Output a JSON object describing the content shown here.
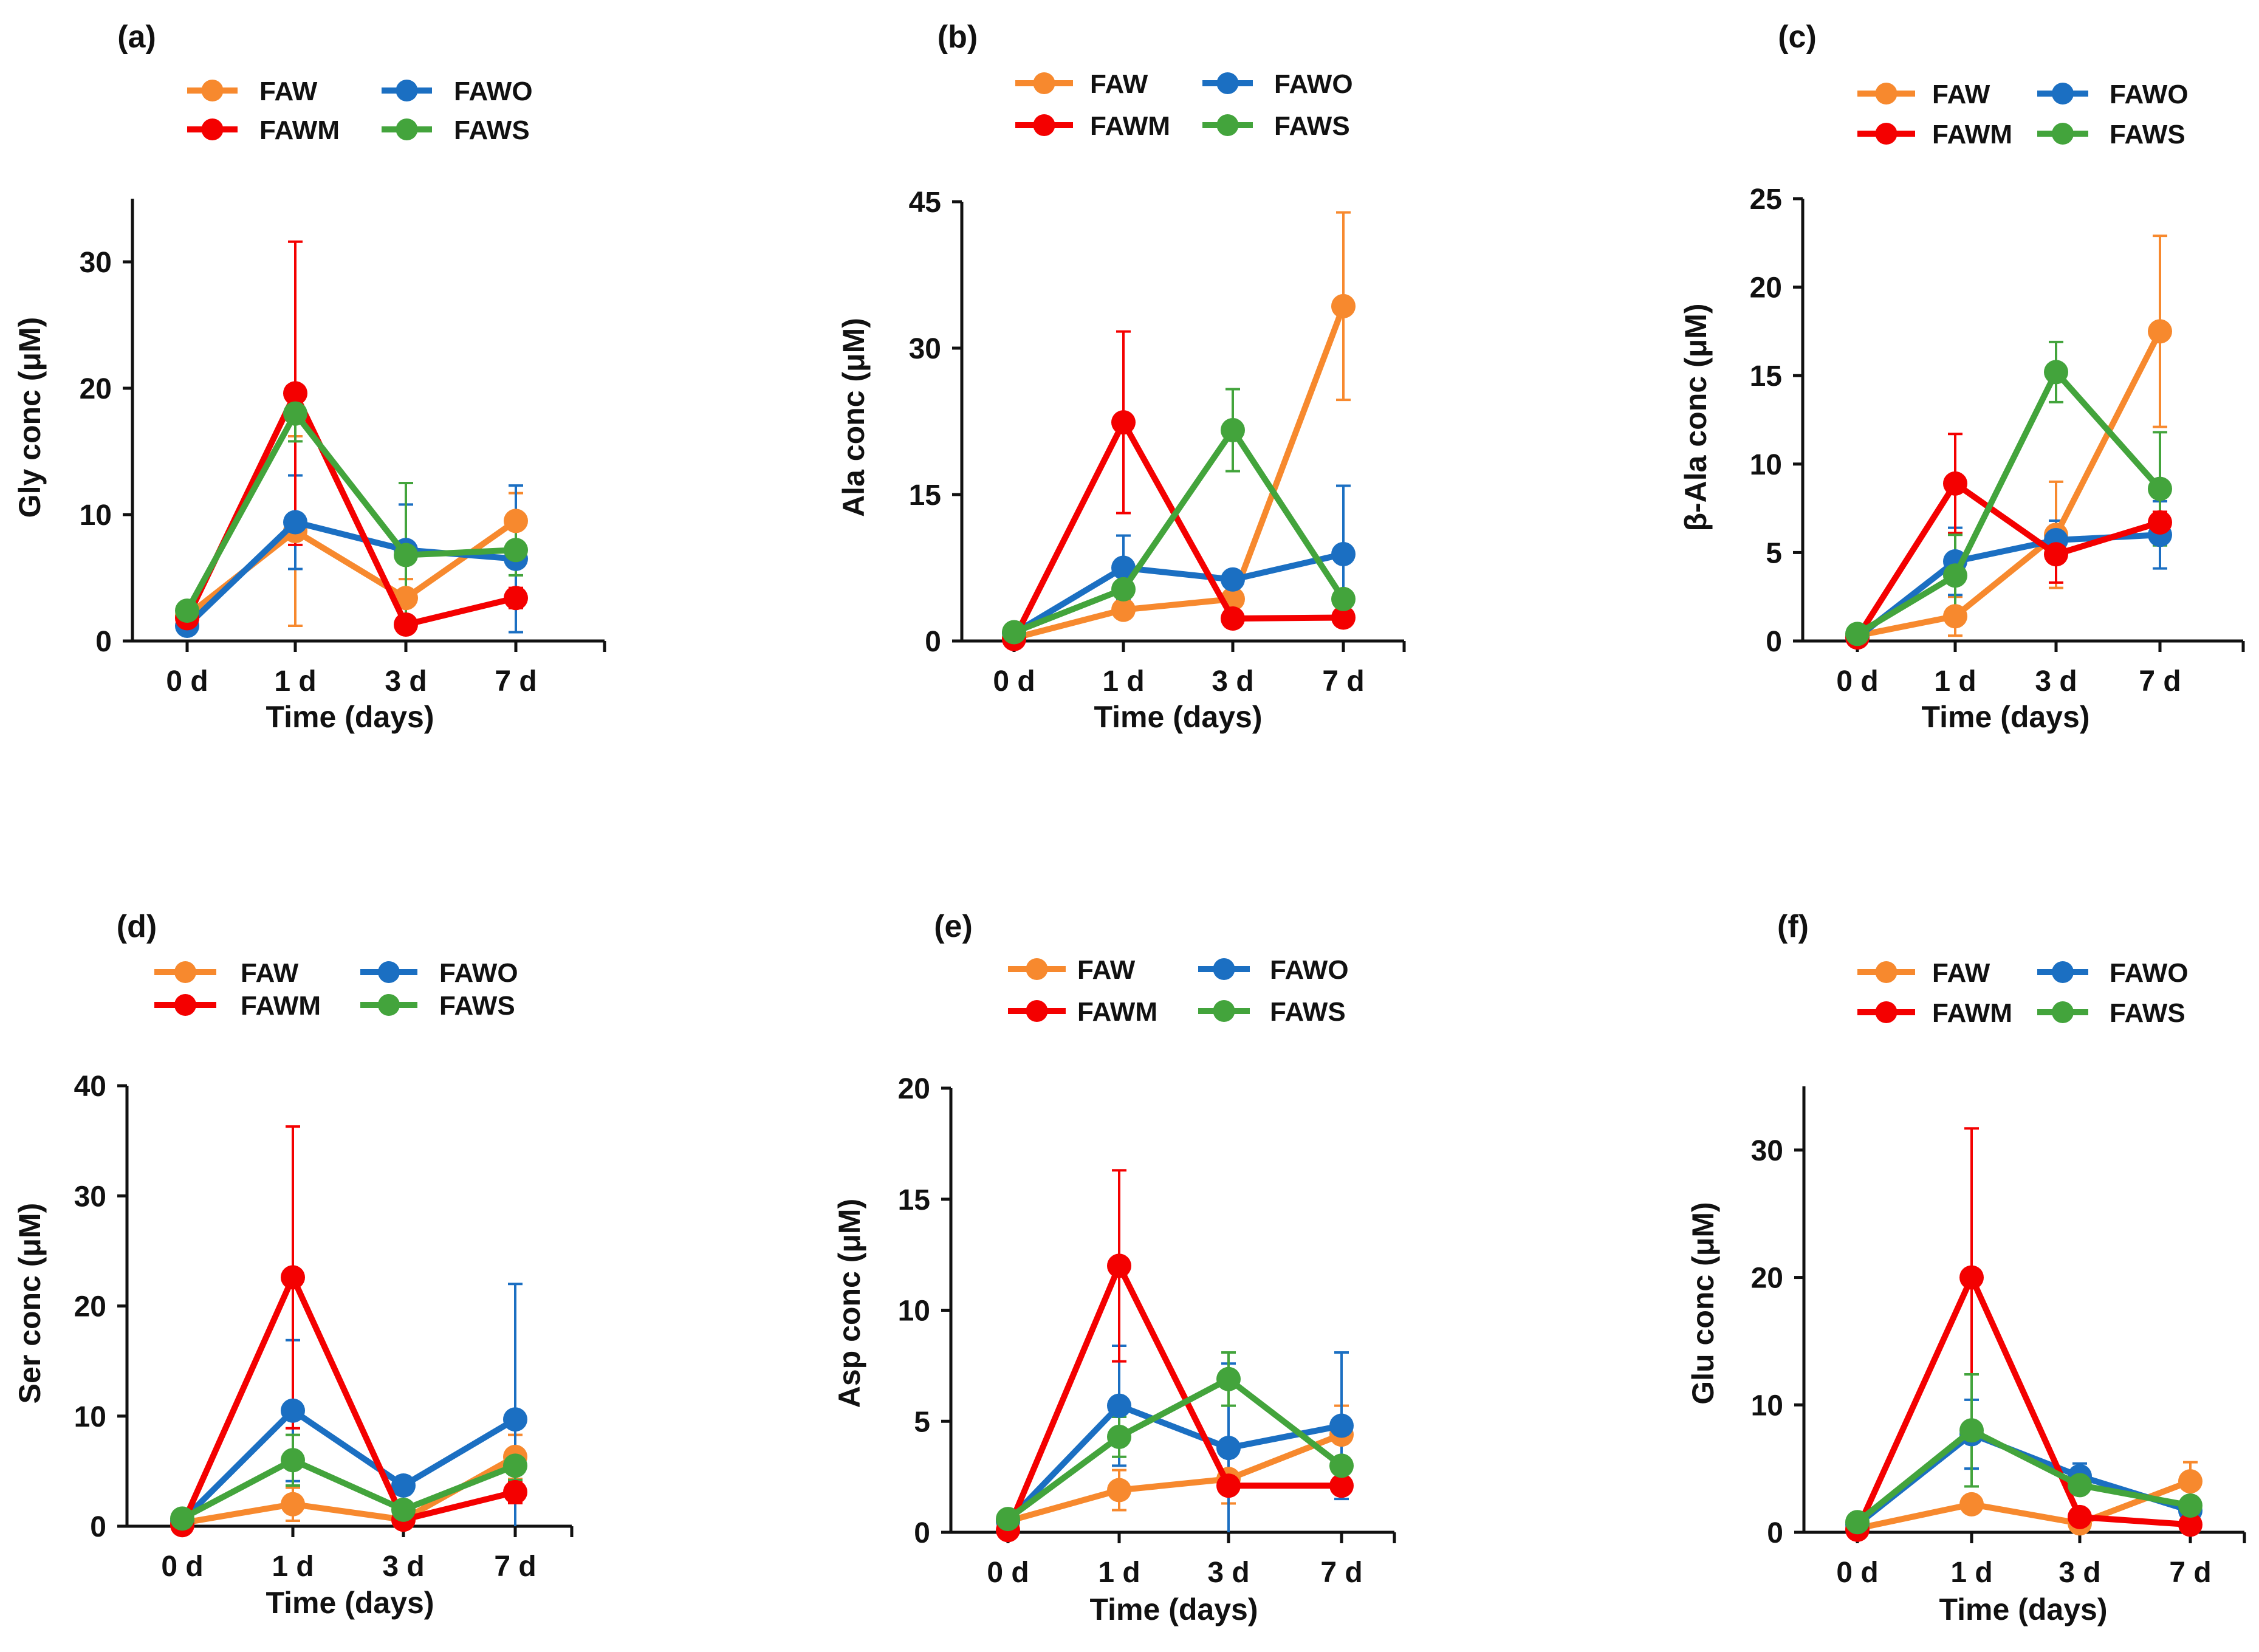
{
  "chart_data": [
    {
      "type": "line",
      "panel_label": "(a)",
      "ylabel": "Gly conc (μM)",
      "xlabel": "Time (days)",
      "categories": [
        "0 d",
        "1 d",
        "3 d",
        "7 d"
      ],
      "ylim": [
        0,
        35
      ],
      "yticks": [
        0,
        10,
        20,
        30
      ],
      "legend": "top",
      "series": [
        {
          "name": "FAW",
          "color": "#F7892E",
          "values": [
            2.0,
            8.7,
            3.4,
            9.5
          ],
          "error": [
            0.4,
            7.5,
            1.5,
            2.2
          ]
        },
        {
          "name": "FAWO",
          "color": "#1B6FC2",
          "values": [
            1.2,
            9.4,
            7.2,
            6.5
          ],
          "error": [
            0.5,
            3.7,
            3.6,
            5.8
          ]
        },
        {
          "name": "FAWM",
          "color": "#F40000",
          "values": [
            1.8,
            19.6,
            1.3,
            3.4
          ],
          "error": [
            0.3,
            12.0,
            0.3,
            0.8
          ]
        },
        {
          "name": "FAWS",
          "color": "#43A43C",
          "values": [
            2.4,
            18.0,
            6.8,
            7.2
          ],
          "error": [
            0.3,
            2.2,
            5.7,
            2.0
          ]
        }
      ]
    },
    {
      "type": "line",
      "panel_label": "(b)",
      "ylabel": "Ala conc (μM)",
      "xlabel": "Time (days)",
      "categories": [
        "0 d",
        "1 d",
        "3 d",
        "7 d"
      ],
      "ylim": [
        0,
        45
      ],
      "yticks": [
        0,
        15,
        30,
        45
      ],
      "legend": "top",
      "series": [
        {
          "name": "FAW",
          "color": "#F7892E",
          "values": [
            0.3,
            3.2,
            4.3,
            34.3
          ],
          "error": [
            0.2,
            0.5,
            0.5,
            9.6
          ]
        },
        {
          "name": "FAWO",
          "color": "#1B6FC2",
          "values": [
            0.8,
            7.5,
            6.3,
            8.9
          ],
          "error": [
            0.3,
            3.3,
            0.8,
            7.0
          ]
        },
        {
          "name": "FAWM",
          "color": "#F40000",
          "values": [
            0.2,
            22.4,
            2.3,
            2.4
          ],
          "error": [
            0.1,
            9.3,
            0.3,
            0.3
          ]
        },
        {
          "name": "FAWS",
          "color": "#43A43C",
          "values": [
            0.9,
            5.3,
            21.6,
            4.3
          ],
          "error": [
            0.2,
            0.8,
            4.2,
            0.8
          ]
        }
      ]
    },
    {
      "type": "line",
      "panel_label": "(c)",
      "ylabel": "β-Ala conc (μM)",
      "xlabel": "Time (days)",
      "categories": [
        "0 d",
        "1 d",
        "3 d",
        "7 d"
      ],
      "ylim": [
        0,
        25
      ],
      "yticks": [
        0,
        5,
        10,
        15,
        20,
        25
      ],
      "legend": "top",
      "series": [
        {
          "name": "FAW",
          "color": "#F7892E",
          "values": [
            0.3,
            1.4,
            6.0,
            17.5
          ],
          "error": [
            0.1,
            1.1,
            3.0,
            5.4
          ]
        },
        {
          "name": "FAWO",
          "color": "#1B6FC2",
          "values": [
            0.2,
            4.5,
            5.7,
            6.0
          ],
          "error": [
            0.1,
            1.9,
            1.1,
            1.9
          ]
        },
        {
          "name": "FAWM",
          "color": "#F40000",
          "values": [
            0.2,
            8.9,
            4.9,
            6.7
          ],
          "error": [
            0.1,
            2.8,
            1.6,
            0.6
          ]
        },
        {
          "name": "FAWS",
          "color": "#43A43C",
          "values": [
            0.4,
            3.7,
            15.2,
            8.6
          ],
          "error": [
            0.1,
            2.3,
            1.7,
            3.2
          ]
        }
      ]
    },
    {
      "type": "line",
      "panel_label": "(d)",
      "ylabel": "Ser conc (μM)",
      "xlabel": "Time (days)",
      "categories": [
        "0 d",
        "1 d",
        "3 d",
        "7 d"
      ],
      "ylim": [
        0,
        40
      ],
      "yticks": [
        0,
        10,
        20,
        30,
        40
      ],
      "legend": "top",
      "series": [
        {
          "name": "FAW",
          "color": "#F7892E",
          "values": [
            0.3,
            2.0,
            0.6,
            6.3
          ],
          "error": [
            0.2,
            1.5,
            0.3,
            2.0
          ]
        },
        {
          "name": "FAWO",
          "color": "#1B6FC2",
          "values": [
            0.5,
            10.5,
            3.7,
            9.7
          ],
          "error": [
            0.3,
            6.4,
            0.8,
            12.3
          ]
        },
        {
          "name": "FAWM",
          "color": "#F40000",
          "values": [
            0.1,
            22.6,
            0.6,
            3.1
          ],
          "error": [
            0.1,
            13.7,
            0.3,
            1.0
          ]
        },
        {
          "name": "FAWS",
          "color": "#43A43C",
          "values": [
            0.7,
            6.0,
            1.5,
            5.5
          ],
          "error": [
            0.3,
            2.3,
            0.5,
            1.3
          ]
        }
      ]
    },
    {
      "type": "line",
      "panel_label": "(e)",
      "ylabel": "Asp conc (μM)",
      "xlabel": "Time (days)",
      "categories": [
        "0 d",
        "1 d",
        "3 d",
        "7 d"
      ],
      "ylim": [
        0,
        20
      ],
      "yticks": [
        0,
        5,
        10,
        15,
        20
      ],
      "legend": "top",
      "series": [
        {
          "name": "FAW",
          "color": "#F7892E",
          "values": [
            0.5,
            1.9,
            2.4,
            4.4
          ],
          "error": [
            0.1,
            0.9,
            1.1,
            1.3
          ]
        },
        {
          "name": "FAWO",
          "color": "#1B6FC2",
          "values": [
            0.5,
            5.7,
            3.8,
            4.8
          ],
          "error": [
            0.2,
            2.7,
            3.8,
            3.3
          ]
        },
        {
          "name": "FAWM",
          "color": "#F40000",
          "values": [
            0.1,
            12.0,
            2.1,
            2.1
          ],
          "error": [
            0.1,
            4.3,
            0.3,
            0.3
          ]
        },
        {
          "name": "FAWS",
          "color": "#43A43C",
          "values": [
            0.6,
            4.3,
            6.9,
            3.0
          ],
          "error": [
            0.2,
            0.9,
            1.2,
            0.3
          ]
        }
      ]
    },
    {
      "type": "line",
      "panel_label": "(f)",
      "ylabel": "Glu conc (μM)",
      "xlabel": "Time (days)",
      "categories": [
        "0 d",
        "1 d",
        "3 d",
        "7 d"
      ],
      "ylim": [
        0,
        35
      ],
      "yticks": [
        0,
        10,
        20,
        30
      ],
      "legend": "top",
      "series": [
        {
          "name": "FAW",
          "color": "#F7892E",
          "values": [
            0.3,
            2.2,
            0.7,
            4.0
          ],
          "error": [
            0.2,
            0.5,
            0.5,
            1.5
          ]
        },
        {
          "name": "FAWO",
          "color": "#1B6FC2",
          "values": [
            0.6,
            7.7,
            4.4,
            1.7
          ],
          "error": [
            0.2,
            2.7,
            1.0,
            0.3
          ]
        },
        {
          "name": "FAWM",
          "color": "#F40000",
          "values": [
            0.2,
            20.0,
            1.2,
            0.6
          ],
          "error": [
            0.1,
            11.7,
            0.3,
            0.3
          ]
        },
        {
          "name": "FAWS",
          "color": "#43A43C",
          "values": [
            0.8,
            8.0,
            3.7,
            2.1
          ],
          "error": [
            0.2,
            4.4,
            0.5,
            0.3
          ]
        }
      ]
    }
  ]
}
